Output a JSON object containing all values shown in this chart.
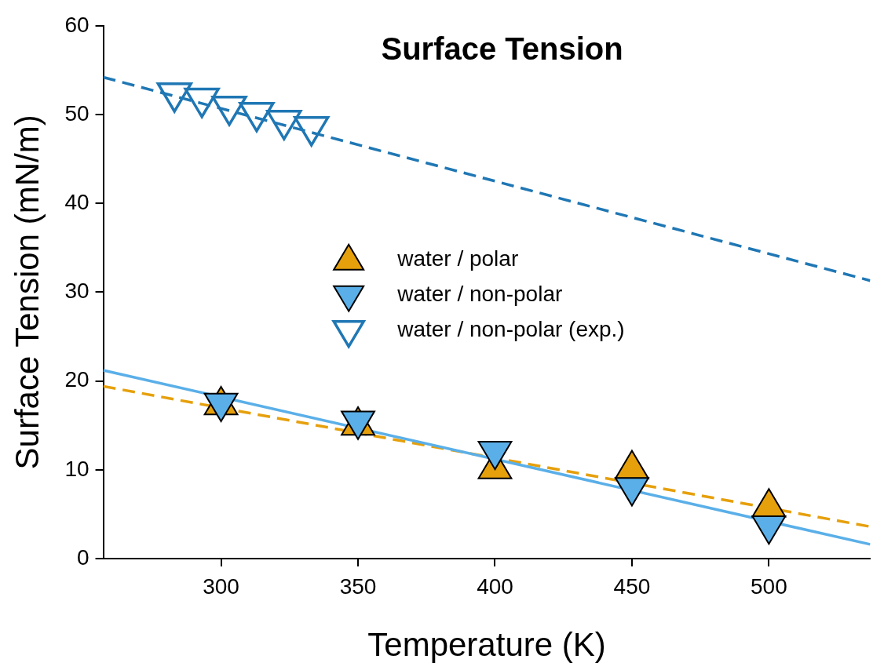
{
  "chart_data": {
    "type": "scatter",
    "title": "Surface Tension",
    "xlabel": "Temperature (K)",
    "ylabel": "Surface Tension (mN/m)",
    "xlim": [
      257,
      537
    ],
    "xticks": [
      300,
      350,
      400,
      450,
      500
    ],
    "ylim": [
      0,
      60
    ],
    "yticks": [
      0,
      10,
      20,
      30,
      40,
      50,
      60
    ],
    "grid": false,
    "legend": "right",
    "series": [
      {
        "name": "water / polar",
        "color": "#e6a00c",
        "marker": "triangle",
        "x": [
          300,
          350,
          400,
          450,
          500
        ],
        "values": [
          17.4,
          15.1,
          10.2,
          10.2,
          5.9
        ]
      },
      {
        "name": "water / non-polar",
        "color": "#5aafe8",
        "marker": "triangle-down",
        "x": [
          300,
          350,
          400,
          450,
          500
        ],
        "values": [
          17.4,
          15.4,
          12.0,
          7.9,
          3.6
        ]
      },
      {
        "name": "water / non-polar (exp.)",
        "color": "#1f77b4",
        "marker": "triangle-down-open",
        "x": [
          283,
          293,
          303,
          313,
          323,
          333
        ],
        "values": [
          52.3,
          51.7,
          50.8,
          50.1,
          49.2,
          48.5
        ]
      },
      {
        "type": "line",
        "color": "#1f77b4",
        "marker": "none",
        "line_style": "dashed",
        "x": [
          257,
          537
        ],
        "values": [
          54.2,
          31.3
        ]
      },
      {
        "type": "line",
        "color": "#5aafe8",
        "marker": "none",
        "line_style": "solid",
        "x": [
          257,
          537
        ],
        "values": [
          21.2,
          1.6
        ]
      },
      {
        "type": "line",
        "color": "#e6a00c",
        "marker": "none",
        "line_style": "dashed",
        "x": [
          257,
          537
        ],
        "values": [
          19.4,
          3.6
        ]
      }
    ]
  }
}
